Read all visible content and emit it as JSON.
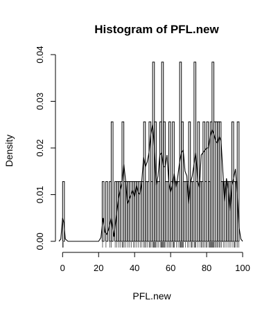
{
  "chart_data": {
    "type": "bar",
    "title": "Histogram of PFL.new",
    "xlabel": "PFL.new",
    "ylabel": "Density",
    "xlim": [
      -4,
      101
    ],
    "ylim": [
      0,
      0.04
    ],
    "x_ticks": [
      0,
      20,
      40,
      60,
      80,
      100
    ],
    "x_tick_labels": [
      "0",
      "20",
      "40",
      "60",
      "80",
      "100"
    ],
    "y_ticks": [
      0,
      0.01,
      0.02,
      0.03,
      0.04
    ],
    "y_tick_labels": [
      "0.00",
      "0.01",
      "0.02",
      "0.03",
      "0.04"
    ],
    "bin_width": 1,
    "bin_starts": [
      0,
      22,
      24,
      26,
      27,
      29,
      30,
      31,
      32,
      33,
      34,
      35,
      36,
      37,
      38,
      39,
      40,
      41,
      42,
      43,
      44,
      45,
      46,
      47,
      48,
      49,
      50,
      51,
      52,
      53,
      54,
      55,
      56,
      57,
      58,
      59,
      60,
      61,
      62,
      63,
      64,
      65,
      66,
      67,
      68,
      69,
      70,
      71,
      72,
      73,
      74,
      75,
      76,
      77,
      78,
      79,
      80,
      81,
      82,
      83,
      84,
      85,
      86,
      87,
      88,
      89,
      90,
      91,
      92,
      93,
      94,
      95,
      96,
      97
    ],
    "values": [
      0.0128,
      0.0128,
      0.0128,
      0.0128,
      0.0256,
      0.0128,
      0.0128,
      0.0128,
      0.0128,
      0.0256,
      0.0128,
      0.0128,
      0.0128,
      0.0128,
      0.0128,
      0.0128,
      0.0128,
      0.0128,
      0.0128,
      0.0128,
      0.0128,
      0.0256,
      0.0128,
      0.0128,
      0.0256,
      0.0128,
      0.0384,
      0.0256,
      0.0128,
      0.0128,
      0.0256,
      0.0384,
      0.0256,
      0.0128,
      0.0128,
      0.0256,
      0.0128,
      0.0256,
      0.0128,
      0.0128,
      0.0128,
      0.0384,
      0.0256,
      0.0128,
      0.0128,
      0.0128,
      0.0256,
      0.0128,
      0.0128,
      0.0384,
      0.0128,
      0.0256,
      0.0128,
      0.0128,
      0.0256,
      0.0128,
      0.0256,
      0.0128,
      0.0256,
      0.0384,
      0.0256,
      0.0256,
      0.0256,
      0.0256,
      0.0128,
      0.0128,
      0.0128,
      0.0128,
      0.0128,
      0.0128,
      0.0256,
      0.0128,
      0.0128,
      0.0256
    ],
    "density_curve": [
      [
        -2,
        0
      ],
      [
        -1,
        0.0005
      ],
      [
        0,
        0.005
      ],
      [
        0.7,
        0.004
      ],
      [
        1.5,
        0.0005
      ],
      [
        3,
        0
      ],
      [
        20,
        0
      ],
      [
        21.3,
        0.0008
      ],
      [
        22.5,
        0.005
      ],
      [
        23.5,
        0.002
      ],
      [
        24.5,
        0.0015
      ],
      [
        25.5,
        0.0025
      ],
      [
        27,
        0.005
      ],
      [
        28.5,
        0.001
      ],
      [
        30,
        0.006
      ],
      [
        31,
        0.009
      ],
      [
        32,
        0.011
      ],
      [
        33,
        0.0125
      ],
      [
        34,
        0.0165
      ],
      [
        35,
        0.013
      ],
      [
        36,
        0.008
      ],
      [
        37,
        0.009
      ],
      [
        38,
        0.01
      ],
      [
        39,
        0.011
      ],
      [
        40,
        0.0095
      ],
      [
        41,
        0.012
      ],
      [
        42,
        0.0105
      ],
      [
        43,
        0.01
      ],
      [
        44,
        0.013
      ],
      [
        45,
        0.018
      ],
      [
        46,
        0.016
      ],
      [
        47,
        0.017
      ],
      [
        48,
        0.019
      ],
      [
        49,
        0.023
      ],
      [
        50,
        0.025
      ],
      [
        51,
        0.02
      ],
      [
        52,
        0.012
      ],
      [
        53,
        0.014
      ],
      [
        54,
        0.0185
      ],
      [
        55,
        0.019
      ],
      [
        56,
        0.016
      ],
      [
        57,
        0.016
      ],
      [
        58,
        0.0185
      ],
      [
        59,
        0.0125
      ],
      [
        60,
        0.0105
      ],
      [
        61,
        0.012
      ],
      [
        62,
        0.0145
      ],
      [
        63,
        0.0115
      ],
      [
        64,
        0.014
      ],
      [
        65,
        0.017
      ],
      [
        66,
        0.019
      ],
      [
        67,
        0.0195
      ],
      [
        68,
        0.015
      ],
      [
        69,
        0.014
      ],
      [
        70,
        0.008
      ],
      [
        71,
        0.0125
      ],
      [
        72,
        0.014
      ],
      [
        73,
        0.0165
      ],
      [
        74,
        0.019
      ],
      [
        75,
        0.013
      ],
      [
        76,
        0.0115
      ],
      [
        77,
        0.0185
      ],
      [
        78,
        0.019
      ],
      [
        79,
        0.0195
      ],
      [
        80,
        0.02
      ],
      [
        81,
        0.02
      ],
      [
        82,
        0.0225
      ],
      [
        83,
        0.024
      ],
      [
        84,
        0.023
      ],
      [
        85,
        0.0215
      ],
      [
        86,
        0.021
      ],
      [
        87,
        0.0225
      ],
      [
        88,
        0.0215
      ],
      [
        89,
        0.015
      ],
      [
        90,
        0.0085
      ],
      [
        91,
        0.0135
      ],
      [
        92,
        0.011
      ],
      [
        93,
        0.0065
      ],
      [
        94,
        0.012
      ],
      [
        95,
        0.0135
      ],
      [
        96,
        0.0155
      ],
      [
        97,
        0.01
      ],
      [
        98,
        0.003
      ],
      [
        99,
        0.0005
      ],
      [
        100,
        0
      ]
    ],
    "rug": [
      0,
      0.3,
      22.2,
      24.1,
      26.2,
      27.1,
      29.2,
      30.1,
      31.3,
      32.2,
      33.1,
      33.6,
      34.2,
      35.1,
      36.3,
      37.2,
      38.1,
      39.3,
      40.2,
      41.1,
      42.2,
      43.3,
      44.1,
      45.2,
      45.7,
      46.3,
      47.2,
      48.1,
      48.6,
      49.2,
      50.1,
      50.4,
      50.8,
      51.2,
      51.7,
      52.3,
      53.1,
      54.2,
      54.7,
      55.1,
      55.4,
      55.8,
      56.2,
      56.6,
      57.3,
      58.2,
      59.1,
      59.6,
      60.3,
      61.2,
      61.7,
      62.1,
      63.3,
      64.2,
      65.1,
      65.4,
      65.8,
      66.2,
      66.6,
      67.1,
      68.2,
      69.3,
      70.1,
      71.2,
      71.7,
      72.3,
      73.2,
      73.6,
      74.1,
      75.2,
      76.3,
      77.1,
      77.6,
      78.2,
      79.1,
      79.7,
      80.3,
      81.2,
      81.6,
      82.1,
      82.4,
      82.8,
      83.2,
      83.6,
      84.1,
      84.6,
      85.2,
      85.8,
      86.3,
      87.1,
      87.6,
      88.2,
      89.3,
      90.1,
      91.2,
      92.3,
      93.1,
      94.2,
      95.1,
      95.6,
      96.2,
      97.1,
      97.8
    ]
  }
}
